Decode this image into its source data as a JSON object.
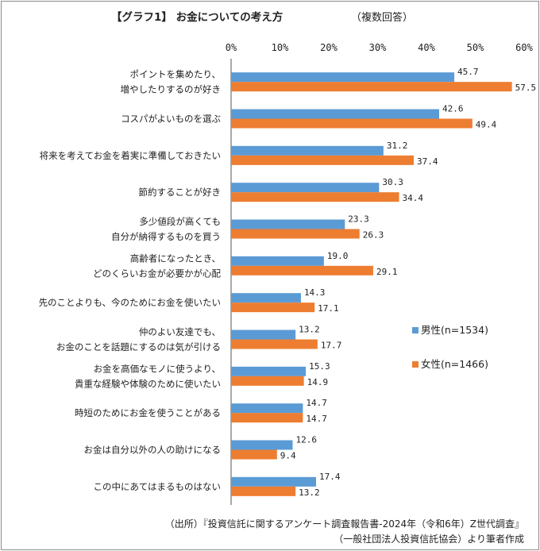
{
  "chart_data": {
    "type": "bar",
    "orientation": "horizontal",
    "title": "【グラフ1】 お金についての考え方",
    "subtitle": "（複数回答）",
    "xlim": [
      0,
      60
    ],
    "ticks": [
      "0%",
      "10%",
      "20%",
      "30%",
      "40%",
      "50%",
      "60%"
    ],
    "categories": [
      [
        "ポイントを集めたり、",
        "増やしたりするのが好き"
      ],
      [
        "コスパがよいものを選ぶ"
      ],
      [
        "将来を考えてお金を着実に準備しておきたい"
      ],
      [
        "節約することが好き"
      ],
      [
        "多少値段が高くても",
        "自分が納得するものを買う"
      ],
      [
        "高齢者になったとき、",
        "どのくらいお金が必要かが心配"
      ],
      [
        "先のことよりも、今のためにお金を使いたい"
      ],
      [
        "仲のよい友達でも、",
        "お金のことを話題にするのは気が引ける"
      ],
      [
        "お金を高価なモノに使うより、",
        "貴重な経験や体験のために使いたい"
      ],
      [
        "時短のためにお金を使うことがある"
      ],
      [
        "お金は自分以外の人の助けになる"
      ],
      [
        "この中にあてはまるものはない"
      ]
    ],
    "series": [
      {
        "name": "男性(n=1534)",
        "color": "#5b9bd5",
        "values": [
          45.7,
          42.6,
          31.2,
          30.3,
          23.3,
          19.0,
          14.3,
          13.2,
          15.3,
          14.7,
          12.6,
          17.4
        ],
        "labels": [
          "45.7",
          "42.6",
          "31.2",
          "30.3",
          "23.3",
          "19.0",
          "14.3",
          "13.2",
          "15.3",
          "14.7",
          "12.6",
          "17.4"
        ]
      },
      {
        "name": "女性(n=1466)",
        "color": "#ed7d31",
        "values": [
          57.5,
          49.4,
          37.4,
          34.4,
          26.3,
          29.1,
          17.1,
          17.7,
          14.9,
          14.7,
          9.4,
          13.2
        ],
        "labels": [
          "57.5",
          "49.4",
          "37.4",
          "34.4",
          "26.3",
          "29.1",
          "17.1",
          "17.7",
          "14.9",
          "14.7",
          "9.4",
          "13.2"
        ]
      }
    ],
    "legend_position": "right",
    "source_lines": [
      "（出所）『投資信託に関するアンケート調査報告書-2024年（令和6年）Z世代調査』",
      "（一般社団法人投資信託協会）より筆者作成"
    ]
  }
}
